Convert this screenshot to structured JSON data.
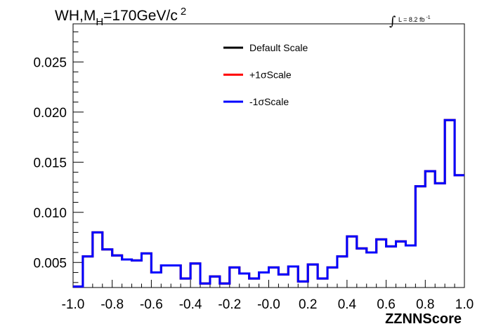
{
  "chart_data": {
    "type": "line",
    "title_parts": {
      "base": "WH,M",
      "sub": "H",
      "main": "=170GeV/c",
      "sup": "2"
    },
    "annotation": {
      "integral": "∫",
      "text": "L = 8.2 fb",
      "sup": "-1"
    },
    "xlabel": "ZZNNScore",
    "ylabel": "",
    "xlim": [
      -1.0,
      1.0
    ],
    "ylim": [
      0.0025,
      0.0288
    ],
    "x_ticks": [
      "-1.0",
      "-0.8",
      "-0.6",
      "-0.4",
      "-0.2",
      "-0.0",
      "0.2",
      "0.4",
      "0.6",
      "0.8",
      "1.0"
    ],
    "x_tick_values": [
      -1.0,
      -0.8,
      -0.6,
      -0.4,
      -0.2,
      0.0,
      0.2,
      0.4,
      0.6,
      0.8,
      1.0
    ],
    "y_ticks": [
      "0.005",
      "0.010",
      "0.015",
      "0.020",
      "0.025"
    ],
    "y_tick_values": [
      0.005,
      0.01,
      0.015,
      0.02,
      0.025
    ],
    "grid": false,
    "legend_position": "top-center",
    "bin_edges_range": [
      -1.0,
      1.0
    ],
    "series": [
      {
        "name": "Default Scale",
        "color": "#000000",
        "values": [
          0.0026,
          0.0056,
          0.008,
          0.0063,
          0.0057,
          0.0053,
          0.0052,
          0.0059,
          0.004,
          0.0047,
          0.0047,
          0.0034,
          0.0049,
          0.0029,
          0.0036,
          0.0029,
          0.0045,
          0.0039,
          0.0034,
          0.004,
          0.0045,
          0.0038,
          0.0046,
          0.0031,
          0.0048,
          0.0034,
          0.0045,
          0.0056,
          0.0076,
          0.0064,
          0.006,
          0.0073,
          0.0066,
          0.0071,
          0.0067,
          0.0126,
          0.0141,
          0.0129,
          0.0192,
          0.0137
        ]
      },
      {
        "name": "+1σScale",
        "color": "#ff0000",
        "values": [
          0.0026,
          0.0056,
          0.008,
          0.0063,
          0.0057,
          0.0053,
          0.0052,
          0.0059,
          0.004,
          0.0047,
          0.0047,
          0.0034,
          0.0049,
          0.0029,
          0.0036,
          0.0029,
          0.0045,
          0.0039,
          0.0034,
          0.004,
          0.0045,
          0.0038,
          0.0046,
          0.0031,
          0.0048,
          0.0034,
          0.0045,
          0.0056,
          0.0076,
          0.0064,
          0.006,
          0.0073,
          0.0066,
          0.0071,
          0.0067,
          0.0126,
          0.0141,
          0.0129,
          0.0192,
          0.0137
        ]
      },
      {
        "name": "-1σScale",
        "color": "#0000ff",
        "values": [
          0.0026,
          0.0056,
          0.008,
          0.0063,
          0.0057,
          0.0053,
          0.0052,
          0.0059,
          0.004,
          0.0047,
          0.0047,
          0.0034,
          0.0049,
          0.0029,
          0.0036,
          0.0029,
          0.0045,
          0.0039,
          0.0034,
          0.004,
          0.0045,
          0.0038,
          0.0046,
          0.0031,
          0.0048,
          0.0034,
          0.0045,
          0.0056,
          0.0076,
          0.0064,
          0.006,
          0.0073,
          0.0066,
          0.0071,
          0.0067,
          0.0126,
          0.0141,
          0.0129,
          0.0192,
          0.0137
        ]
      }
    ]
  }
}
